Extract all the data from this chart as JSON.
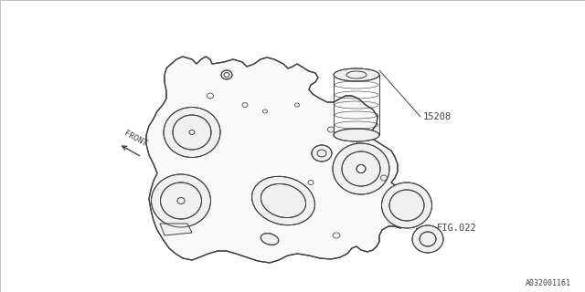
{
  "bg_color": "#ffffff",
  "line_color": "#404040",
  "fig_width": 6.4,
  "fig_height": 3.2,
  "dpi": 100,
  "label_15208": "15208",
  "label_fig022": "FIG.022",
  "label_front": "FRONT",
  "label_code": "A032001161",
  "lw": 0.7,
  "border_color": "#aaaaaa"
}
